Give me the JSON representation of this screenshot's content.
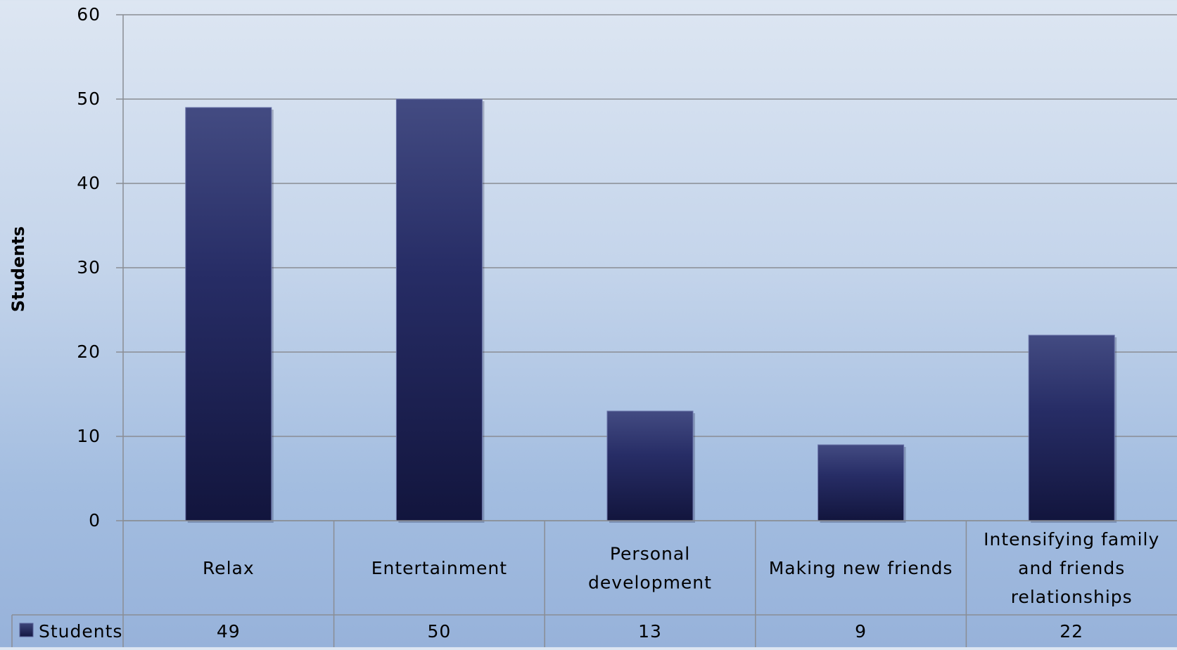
{
  "chart_data": {
    "type": "bar",
    "ylabel": "Students",
    "xlabel": "",
    "title": "",
    "ylim": [
      0,
      60
    ],
    "yticks": [
      0,
      10,
      20,
      30,
      40,
      50,
      60
    ],
    "grid": true,
    "legend_placement": "data-table",
    "categories": [
      [
        "Relax"
      ],
      [
        "Entertainment"
      ],
      [
        "Personal",
        "development"
      ],
      [
        "Making new friends"
      ],
      [
        "Intensifying family",
        "and friends",
        "relationships"
      ]
    ],
    "series": [
      {
        "name": "Students",
        "values": [
          49,
          50,
          13,
          9,
          22
        ],
        "color": "#1f2457"
      }
    ]
  }
}
